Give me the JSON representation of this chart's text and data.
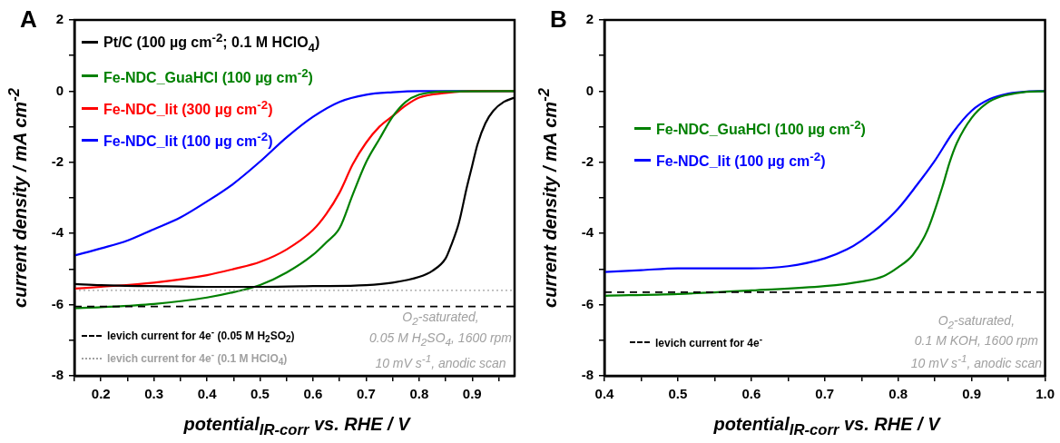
{
  "chart_data": [
    {
      "type": "line",
      "title": "A",
      "xlabel": "potential$_{IR-corr}$ vs. RHE / V",
      "ylabel": "current density / mA cm$^{-2}$",
      "xlim": [
        0.15,
        0.98
      ],
      "ylim": [
        -8,
        2
      ],
      "xticks": [
        {
          "value": 0.15,
          "label": null
        },
        0.2,
        {
          "value": 0.25,
          "label": null
        },
        0.3,
        {
          "value": 0.35,
          "label": null
        },
        0.4,
        {
          "value": 0.45,
          "label": null
        },
        0.5,
        {
          "value": 0.55,
          "label": null
        },
        0.6,
        {
          "value": 0.65,
          "label": null
        },
        0.7,
        {
          "value": 0.75,
          "label": null
        },
        0.8,
        {
          "value": 0.85,
          "label": null
        },
        0.9,
        {
          "value": 0.95,
          "label": null
        }
      ],
      "yticks": [
        -8,
        {
          "value": -7,
          "label": null
        },
        -6,
        {
          "value": -5,
          "label": null
        },
        -4,
        {
          "value": -3,
          "label": null
        },
        -2,
        {
          "value": -1,
          "label": null
        },
        0,
        {
          "value": 1,
          "label": null
        },
        2
      ],
      "grid": false,
      "legend": "left",
      "series": [
        {
          "name": "Pt/C (100 µg cm$^{-2}$; 0.1 M HClO$_{4}$)",
          "color": "#000000",
          "x": [
            0.15,
            0.2,
            0.3,
            0.4,
            0.5,
            0.6,
            0.7,
            0.75,
            0.8,
            0.825,
            0.85,
            0.86,
            0.875,
            0.89,
            0.9,
            0.91,
            0.925,
            0.94,
            0.96,
            0.98
          ],
          "values": [
            -5.42,
            -5.45,
            -5.48,
            -5.5,
            -5.5,
            -5.48,
            -5.45,
            -5.38,
            -5.22,
            -5.05,
            -4.7,
            -4.35,
            -3.7,
            -2.7,
            -2.1,
            -1.5,
            -0.9,
            -0.55,
            -0.3,
            -0.18
          ]
        },
        {
          "name": "Fe-NDC_GuaHCl (100 µg cm$^{-2}$)",
          "color": "#008000",
          "x": [
            0.15,
            0.2,
            0.3,
            0.4,
            0.45,
            0.5,
            0.55,
            0.6,
            0.625,
            0.65,
            0.675,
            0.7,
            0.725,
            0.75,
            0.775,
            0.8,
            0.85,
            0.98
          ],
          "values": [
            -6.1,
            -6.07,
            -5.98,
            -5.8,
            -5.65,
            -5.45,
            -5.1,
            -4.6,
            -4.25,
            -3.85,
            -2.9,
            -2.0,
            -1.35,
            -0.72,
            -0.3,
            -0.1,
            -0.01,
            0
          ]
        },
        {
          "name": "Fe-NDC_lit (300 µg cm$^{-2}$)",
          "color": "#ff0000",
          "x": [
            0.15,
            0.2,
            0.3,
            0.4,
            0.45,
            0.5,
            0.55,
            0.6,
            0.625,
            0.65,
            0.675,
            0.7,
            0.725,
            0.75,
            0.775,
            0.8,
            0.85,
            0.9,
            0.98
          ],
          "values": [
            -5.55,
            -5.5,
            -5.38,
            -5.17,
            -5.0,
            -4.8,
            -4.45,
            -3.9,
            -3.45,
            -2.85,
            -2.05,
            -1.45,
            -1.0,
            -0.7,
            -0.4,
            -0.18,
            -0.05,
            0,
            0
          ]
        },
        {
          "name": "Fe-NDC_lit (100 µg cm$^{-2}$)",
          "color": "#0000ff",
          "x": [
            0.15,
            0.2,
            0.25,
            0.3,
            0.35,
            0.4,
            0.45,
            0.5,
            0.55,
            0.6,
            0.65,
            0.7,
            0.75,
            0.8,
            0.98
          ],
          "values": [
            -4.62,
            -4.42,
            -4.2,
            -3.88,
            -3.55,
            -3.1,
            -2.6,
            -1.98,
            -1.3,
            -0.72,
            -0.3,
            -0.1,
            -0.03,
            0,
            0
          ]
        }
      ],
      "ref_lines": [
        {
          "axis": "y",
          "value": -6.05,
          "label": "levich current for 4e$^{-}$ (0.05 M H$_{2}$SO$_{2}$)",
          "color": "#000000",
          "line_style": "dashed"
        },
        {
          "axis": "y",
          "value": -5.6,
          "label": "levich current for 4e$^{-}$ (0.1 M HClO$_{4}$)",
          "color": "#a0a0a0",
          "line_style": "dotted"
        }
      ],
      "annotations": [
        "O$_{2}$-saturated,",
        "0.05 M H$_{2}$SO$_{4}$, 1600 rpm",
        "10 mV s$^{-1}$, anodic scan"
      ]
    },
    {
      "type": "line",
      "title": "B",
      "xlabel": "potential$_{IR-corr}$ vs. RHE / V",
      "ylabel": "current density / mA cm$^{-2}$",
      "xlim": [
        0.4,
        1.0
      ],
      "ylim": [
        -8,
        2
      ],
      "xticks": [
        0.4,
        {
          "value": 0.45,
          "label": null
        },
        0.5,
        {
          "value": 0.55,
          "label": null
        },
        0.6,
        {
          "value": 0.65,
          "label": null
        },
        0.7,
        {
          "value": 0.75,
          "label": null
        },
        0.8,
        {
          "value": 0.85,
          "label": null
        },
        0.9,
        {
          "value": 0.95,
          "label": null
        },
        {
          "value": 1.0,
          "label": "1.0"
        }
      ],
      "yticks": [
        -8,
        {
          "value": -7,
          "label": null
        },
        -6,
        {
          "value": -5,
          "label": null
        },
        -4,
        {
          "value": -3,
          "label": null
        },
        -2,
        {
          "value": -1,
          "label": null
        },
        0,
        {
          "value": 1,
          "label": null
        },
        2
      ],
      "grid": false,
      "legend": "left",
      "series": [
        {
          "name": "Fe-NDC_GuaHCl (100 µg cm$^{-2}$)",
          "color": "#008000",
          "x": [
            0.4,
            0.5,
            0.6,
            0.7,
            0.75,
            0.78,
            0.8,
            0.82,
            0.84,
            0.86,
            0.87,
            0.88,
            0.9,
            0.92,
            0.94,
            0.97,
            1.0
          ],
          "values": [
            -5.75,
            -5.7,
            -5.6,
            -5.48,
            -5.35,
            -5.2,
            -4.95,
            -4.6,
            -3.9,
            -2.7,
            -2.0,
            -1.45,
            -0.75,
            -0.35,
            -0.15,
            -0.03,
            0
          ]
        },
        {
          "name": "Fe-NDC_lit (100 µg cm$^{-2}$)",
          "color": "#0000ff",
          "x": [
            0.4,
            0.45,
            0.5,
            0.55,
            0.6,
            0.65,
            0.7,
            0.73,
            0.75,
            0.775,
            0.8,
            0.825,
            0.85,
            0.875,
            0.9,
            0.925,
            0.95,
            0.975,
            1.0
          ],
          "values": [
            -5.08,
            -5.03,
            -4.98,
            -4.98,
            -4.98,
            -4.92,
            -4.7,
            -4.45,
            -4.2,
            -3.8,
            -3.3,
            -2.65,
            -1.95,
            -1.15,
            -0.55,
            -0.22,
            -0.07,
            -0.01,
            0
          ]
        }
      ],
      "ref_lines": [
        {
          "axis": "y",
          "value": -5.65,
          "label": "levich current for 4e$^{-}$",
          "color": "#000000",
          "line_style": "dashed"
        }
      ],
      "annotations": [
        "O$_{2}$-saturated,",
        "0.1 M KOH, 1600 rpm",
        "10 mV s$^{-1}$, anodic scan"
      ]
    }
  ]
}
